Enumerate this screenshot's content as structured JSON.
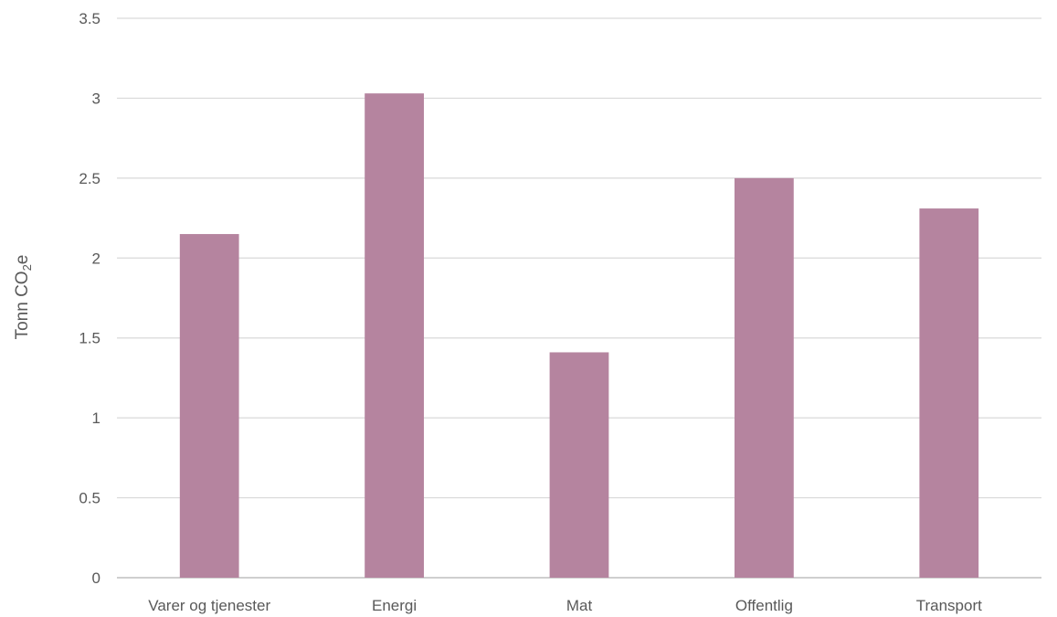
{
  "chart_data": {
    "type": "bar",
    "title": "",
    "xlabel": "",
    "ylabel": {
      "prefix": "Tonn CO",
      "subscript": "2",
      "suffix": "e"
    },
    "categories": [
      "Varer og tjenester",
      "Energi",
      "Mat",
      "Offentlig",
      "Transport"
    ],
    "values": [
      2.15,
      3.03,
      1.41,
      2.5,
      2.31
    ],
    "ylim": [
      0,
      3.5
    ],
    "yticks": [
      0,
      0.5,
      1,
      1.5,
      2,
      2.5,
      3,
      3.5
    ],
    "ytick_labels": [
      "0",
      "0.5",
      "1",
      "1.5",
      "2",
      "2.5",
      "3",
      "3.5"
    ],
    "grid": true,
    "legend": "none",
    "bar_color": "#b5849f"
  }
}
